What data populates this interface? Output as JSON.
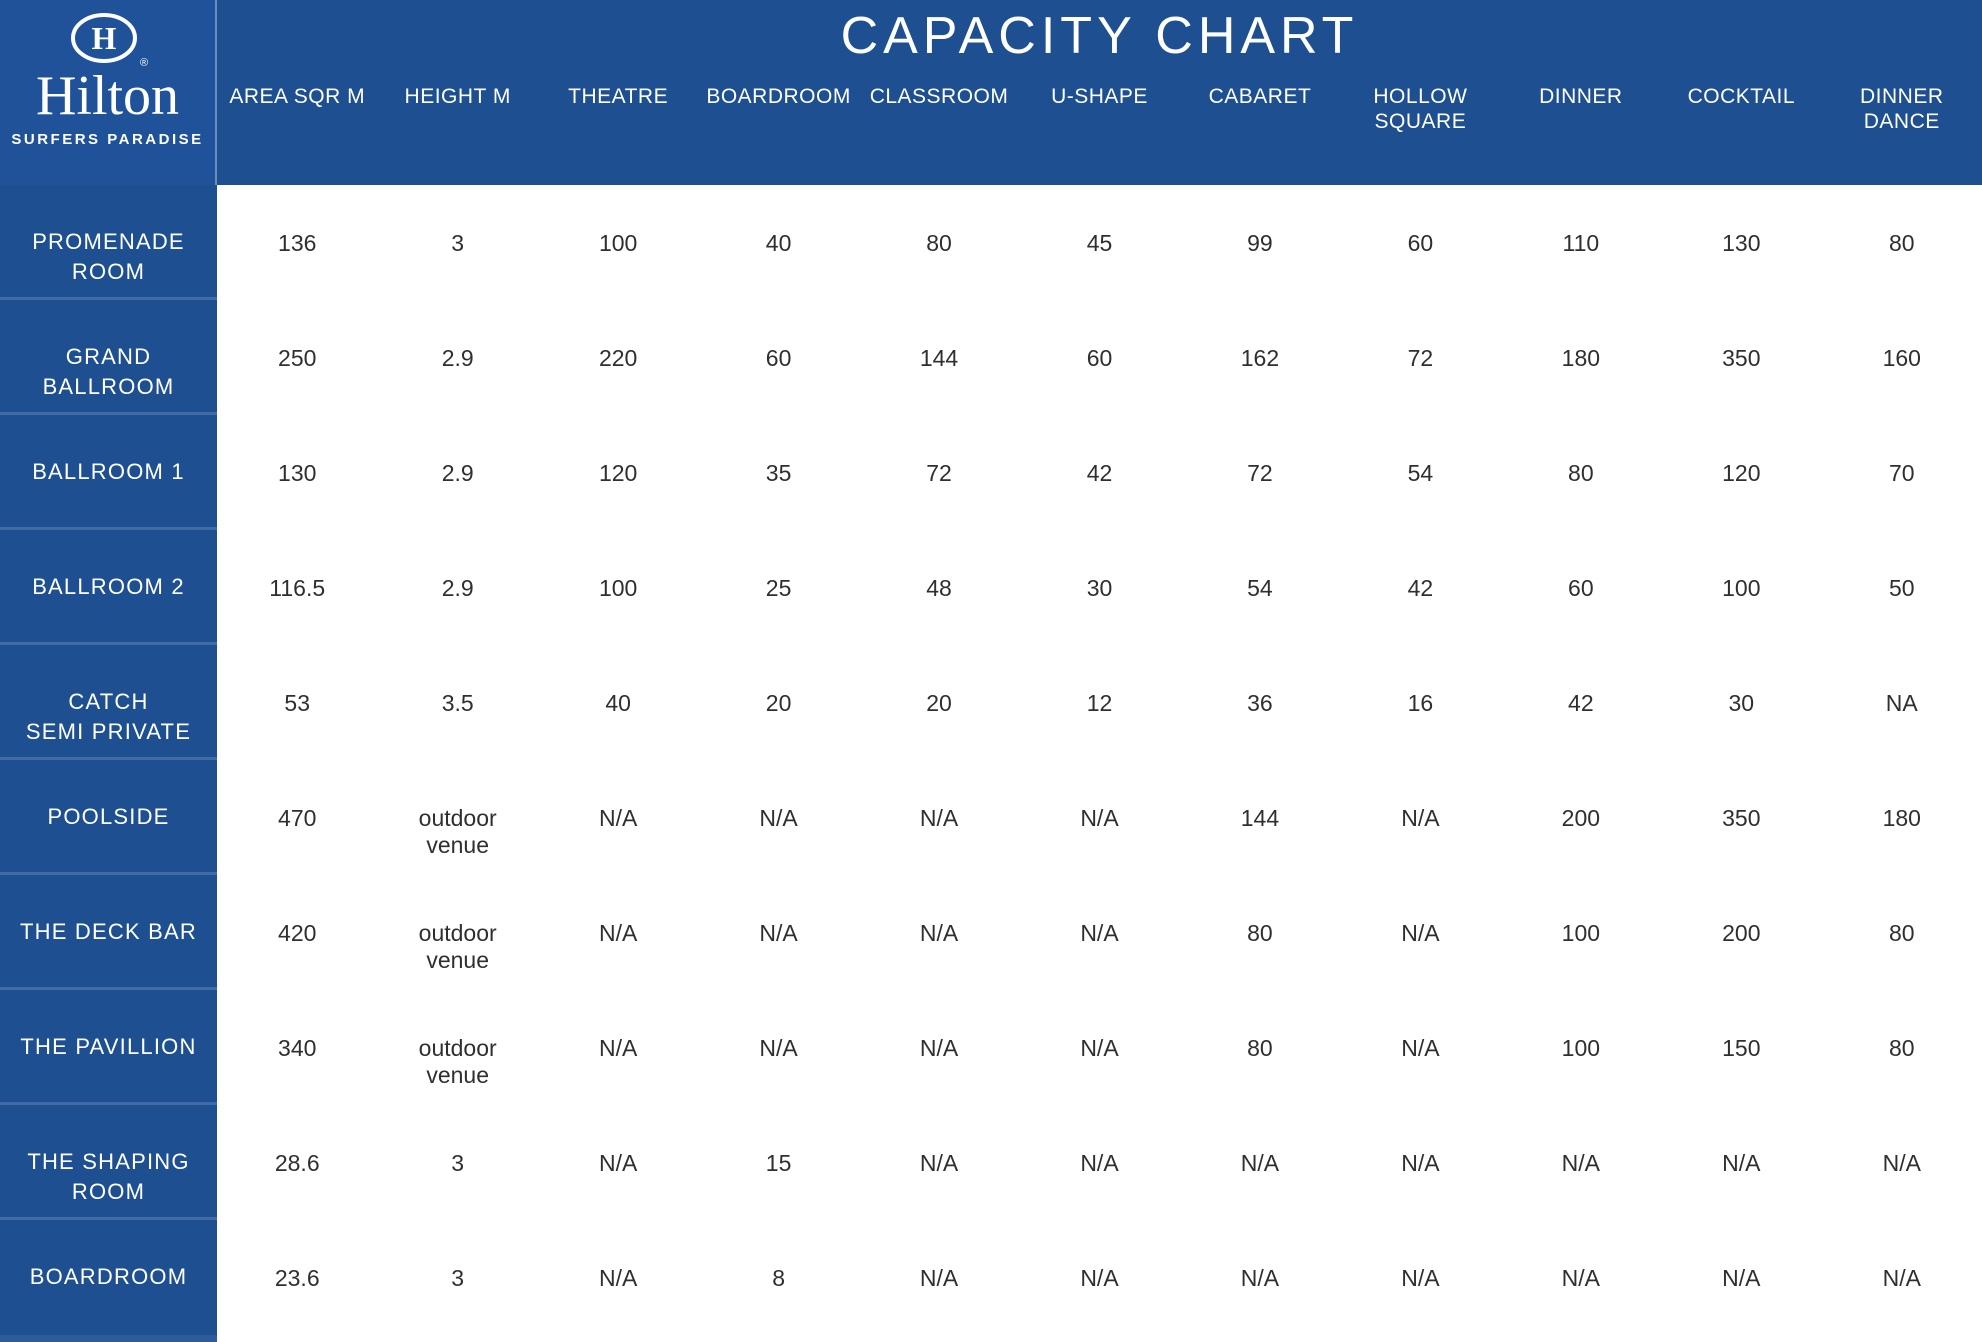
{
  "brand": {
    "name": "Hilton",
    "location": "SURFERS PARADISE"
  },
  "title": "CAPACITY CHART",
  "colors": {
    "blue": "#1d4f91",
    "logo_blue": "#1f5299",
    "text_dark": "#2f2f2f"
  },
  "table": {
    "columns": [
      "AREA SQR M",
      "HEIGHT M",
      "THEATRE",
      "BOARDROOM",
      "CLASSROOM",
      "U-SHAPE",
      "CABARET",
      "HOLLOW\nSQUARE",
      "DINNER",
      "COCKTAIL",
      "DINNER\nDANCE"
    ],
    "rows": [
      {
        "name": "PROMENADE\nROOM",
        "values": [
          "136",
          "3",
          "100",
          "40",
          "80",
          "45",
          "99",
          "60",
          "110",
          "130",
          "80"
        ]
      },
      {
        "name": "GRAND\nBALLROOM",
        "values": [
          "250",
          "2.9",
          "220",
          "60",
          "144",
          "60",
          "162",
          "72",
          "180",
          "350",
          "160"
        ]
      },
      {
        "name": "BALLROOM 1",
        "values": [
          "130",
          "2.9",
          "120",
          "35",
          "72",
          "42",
          "72",
          "54",
          "80",
          "120",
          "70"
        ]
      },
      {
        "name": "BALLROOM 2",
        "values": [
          "116.5",
          "2.9",
          "100",
          "25",
          "48",
          "30",
          "54",
          "42",
          "60",
          "100",
          "50"
        ]
      },
      {
        "name": "CATCH\nSEMI PRIVATE",
        "values": [
          "53",
          "3.5",
          "40",
          "20",
          "20",
          "12",
          "36",
          "16",
          "42",
          "30",
          "NA"
        ]
      },
      {
        "name": "POOLSIDE",
        "values": [
          "470",
          "outdoor\nvenue",
          "N/A",
          "N/A",
          "N/A",
          "N/A",
          "144",
          "N/A",
          "200",
          "350",
          "180"
        ]
      },
      {
        "name": "THE DECK BAR",
        "values": [
          "420",
          "outdoor\nvenue",
          "N/A",
          "N/A",
          "N/A",
          "N/A",
          "80",
          "N/A",
          "100",
          "200",
          "80"
        ]
      },
      {
        "name": "THE PAVILLION",
        "values": [
          "340",
          "outdoor\nvenue",
          "N/A",
          "N/A",
          "N/A",
          "N/A",
          "80",
          "N/A",
          "100",
          "150",
          "80"
        ]
      },
      {
        "name": "THE SHAPING\nROOM",
        "values": [
          "28.6",
          "3",
          "N/A",
          "15",
          "N/A",
          "N/A",
          "N/A",
          "N/A",
          "N/A",
          "N/A",
          "N/A"
        ]
      },
      {
        "name": "BOARDROOM",
        "values": [
          "23.6",
          "3",
          "N/A",
          "8",
          "N/A",
          "N/A",
          "N/A",
          "N/A",
          "N/A",
          "N/A",
          "N/A"
        ]
      }
    ]
  },
  "chart_data": {
    "type": "table",
    "title": "CAPACITY CHART",
    "columns": [
      "AREA SQR M",
      "HEIGHT M",
      "THEATRE",
      "BOARDROOM",
      "CLASSROOM",
      "U-SHAPE",
      "CABARET",
      "HOLLOW SQUARE",
      "DINNER",
      "COCKTAIL",
      "DINNER DANCE"
    ],
    "rows": [
      {
        "room": "PROMENADE ROOM",
        "values": [
          "136",
          "3",
          "100",
          "40",
          "80",
          "45",
          "99",
          "60",
          "110",
          "130",
          "80"
        ]
      },
      {
        "room": "GRAND BALLROOM",
        "values": [
          "250",
          "2.9",
          "220",
          "60",
          "144",
          "60",
          "162",
          "72",
          "180",
          "350",
          "160"
        ]
      },
      {
        "room": "BALLROOM 1",
        "values": [
          "130",
          "2.9",
          "120",
          "35",
          "72",
          "42",
          "72",
          "54",
          "80",
          "120",
          "70"
        ]
      },
      {
        "room": "BALLROOM 2",
        "values": [
          "116.5",
          "2.9",
          "100",
          "25",
          "48",
          "30",
          "54",
          "42",
          "60",
          "100",
          "50"
        ]
      },
      {
        "room": "CATCH SEMI PRIVATE",
        "values": [
          "53",
          "3.5",
          "40",
          "20",
          "20",
          "12",
          "36",
          "16",
          "42",
          "30",
          "NA"
        ]
      },
      {
        "room": "POOLSIDE",
        "values": [
          "470",
          "outdoor venue",
          "N/A",
          "N/A",
          "N/A",
          "N/A",
          "144",
          "N/A",
          "200",
          "350",
          "180"
        ]
      },
      {
        "room": "THE DECK BAR",
        "values": [
          "420",
          "outdoor venue",
          "N/A",
          "N/A",
          "N/A",
          "N/A",
          "80",
          "N/A",
          "100",
          "200",
          "80"
        ]
      },
      {
        "room": "THE PAVILLION",
        "values": [
          "340",
          "outdoor venue",
          "N/A",
          "N/A",
          "N/A",
          "N/A",
          "80",
          "N/A",
          "100",
          "150",
          "80"
        ]
      },
      {
        "room": "THE SHAPING ROOM",
        "values": [
          "28.6",
          "3",
          "N/A",
          "15",
          "N/A",
          "N/A",
          "N/A",
          "N/A",
          "N/A",
          "N/A",
          "N/A"
        ]
      },
      {
        "room": "BOARDROOM",
        "values": [
          "23.6",
          "3",
          "N/A",
          "8",
          "N/A",
          "N/A",
          "N/A",
          "N/A",
          "N/A",
          "N/A",
          "N/A"
        ]
      }
    ]
  }
}
